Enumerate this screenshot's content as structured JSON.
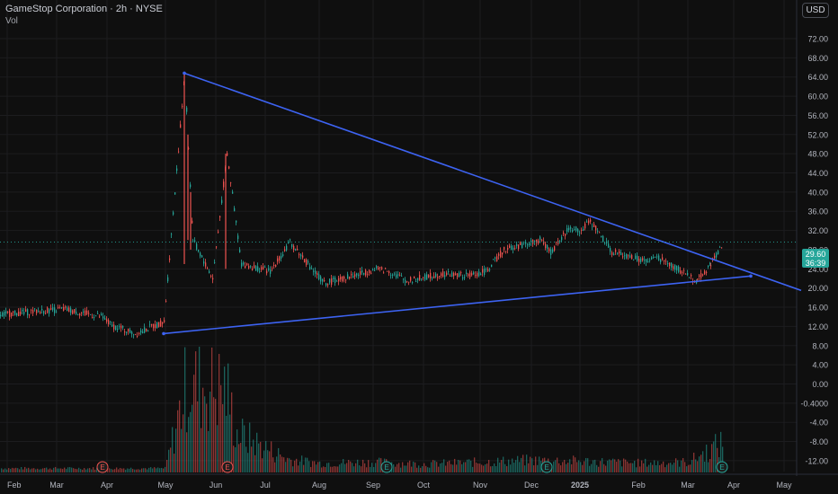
{
  "header": {
    "title": "GameStop Corporation · 2h · NYSE",
    "volume_label": "Vol"
  },
  "currency_button": "USD",
  "last_price": {
    "value": "29.60",
    "countdown": "36:39",
    "color": "#26a69a"
  },
  "colors": {
    "background": "#0f0f0f",
    "trendline": "#3d63f2",
    "up": "#26a69a",
    "down": "#ef5350",
    "grid": "#1c1c1f"
  },
  "y_axis": {
    "labels": [
      "72.00",
      "68.00",
      "64.00",
      "60.00",
      "56.00",
      "52.00",
      "48.00",
      "44.00",
      "40.00",
      "36.00",
      "32.00",
      "28.00",
      "24.00",
      "20.00",
      "16.00",
      "12.00",
      "8.00",
      "4.00",
      "0.00",
      "-0.4000",
      "-4.00",
      "-8.00",
      "-12.00"
    ]
  },
  "x_axis": {
    "labels": [
      "Feb",
      "Mar",
      "Apr",
      "May",
      "Jun",
      "Jul",
      "Aug",
      "Sep",
      "Oct",
      "Nov",
      "Dec",
      "2025",
      "Feb",
      "Mar",
      "Apr",
      "May"
    ]
  },
  "earnings_markers": [
    {
      "label": "E",
      "type": "negative"
    },
    {
      "label": "E",
      "type": "negative"
    },
    {
      "label": "E",
      "type": "positive"
    },
    {
      "label": "E",
      "type": "positive"
    },
    {
      "label": "E",
      "type": "positive"
    }
  ],
  "chart_data": {
    "type": "line",
    "title": "GameStop Corporation · 2h · NYSE",
    "price_unit": "USD",
    "ylim": [
      -12,
      72
    ],
    "grid": true,
    "series": [
      {
        "name": "GameStop Corporation",
        "points": [
          [
            "Feb",
            14.5
          ],
          [
            "Mar",
            15.6
          ],
          [
            "Apr",
            14.0
          ],
          [
            "Apr",
            12.2
          ],
          [
            "May",
            10.5
          ],
          [
            "May",
            13.0
          ],
          [
            "May",
            64.8
          ],
          [
            "May",
            30.0
          ],
          [
            "Jun",
            22.0
          ],
          [
            "Jun",
            48.0
          ],
          [
            "Jun",
            25.0
          ],
          [
            "Jul",
            23.5
          ],
          [
            "Jul",
            29.5
          ],
          [
            "Aug",
            21.0
          ],
          [
            "Aug",
            24.0
          ],
          [
            "Sep",
            23.5
          ],
          [
            "Sep",
            21.5
          ],
          [
            "Oct",
            23.0
          ],
          [
            "Oct",
            22.5
          ],
          [
            "Nov",
            23.5
          ],
          [
            "Nov",
            28.0
          ],
          [
            "Dec",
            30.0
          ],
          [
            "Dec",
            27.5
          ],
          [
            "Dec",
            32.5
          ],
          [
            "2025",
            32.0
          ],
          [
            "2025",
            34.0
          ],
          [
            "Feb",
            27.5
          ],
          [
            "Feb",
            25.5
          ],
          [
            "Mar",
            26.5
          ],
          [
            "Mar",
            21.5
          ],
          [
            "Mar",
            25.0
          ],
          [
            "Apr",
            29.6
          ]
        ]
      },
      {
        "name": "Trendline",
        "points": [
          [
            "May",
            64.8
          ],
          [
            "May",
            19.5
          ]
        ]
      },
      {
        "name": "Trendline",
        "points": [
          [
            "May",
            10.5
          ],
          [
            "Apr",
            22.5
          ]
        ]
      }
    ],
    "volume_bars": [
      [
        "May",
        0.6
      ],
      [
        "May",
        5.0
      ],
      [
        "May",
        9.2
      ],
      [
        "Jun",
        8.6
      ],
      [
        "Jun",
        4.0
      ],
      [
        "Jul",
        1.2
      ],
      [
        "Aug",
        0.8
      ],
      [
        "Sep",
        0.9
      ],
      [
        "Oct",
        0.7
      ],
      [
        "Nov",
        0.9
      ],
      [
        "Dec",
        1.1
      ],
      [
        "2025",
        1.0
      ],
      [
        "Feb",
        0.8
      ],
      [
        "Mar",
        0.9
      ],
      [
        "Apr",
        3.0
      ]
    ]
  }
}
